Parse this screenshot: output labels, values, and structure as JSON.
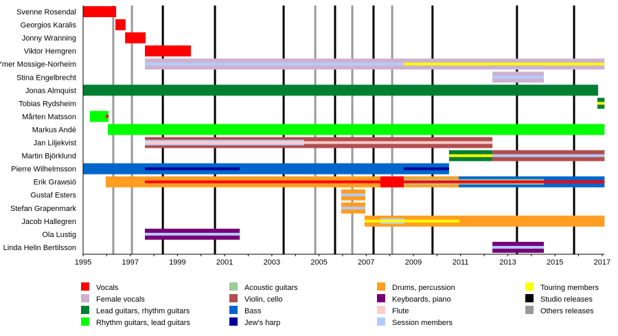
{
  "chart_data": {
    "type": "timeline",
    "title": "",
    "xlim": [
      1995,
      2017.1
    ],
    "x_ticks_labeled": [
      1995,
      1997,
      1999,
      2001,
      2003,
      2005,
      2007,
      2009,
      2011,
      2013,
      2015,
      2017
    ],
    "x_tick_labels": [
      "1995",
      "1997",
      "1999",
      "2001",
      "2003",
      "2005",
      "2007",
      "2009",
      "2011",
      "2013",
      "2015",
      "2017"
    ],
    "roles": {
      "vocals": {
        "label": "Vocals",
        "color": "#ff0000"
      },
      "female_vocals": {
        "label": "Female vocals",
        "color": "#cdb2cf"
      },
      "lead_guitars": {
        "label": "Lead guitars, rhythm guitars",
        "color": "#007f33"
      },
      "rhythm_guitars": {
        "label": "Rhythm guitars, lead guitars",
        "color": "#00ff00"
      },
      "acoustic_guitars": {
        "label": "Acoustic guitars",
        "color": "#9ccc9a"
      },
      "violin": {
        "label": "Violin, cello",
        "color": "#b24e4e"
      },
      "bass": {
        "label": "Bass",
        "color": "#0066cc"
      },
      "jews_harp": {
        "label": "Jew's harp",
        "color": "#000099"
      },
      "drums": {
        "label": "Drums, percussion",
        "color": "#ff9e22"
      },
      "keyboards": {
        "label": "Keyboards, piano",
        "color": "#770077"
      },
      "flute": {
        "label": "Flute",
        "color": "#ffcccc"
      },
      "session": {
        "label": "Session members",
        "color": "#b3ccff"
      },
      "touring": {
        "label": "Touring members",
        "color": "#ffff00"
      },
      "studio": {
        "label": "Studio releases",
        "color": "#000000"
      },
      "others": {
        "label": "Others releases",
        "color": "#999999"
      }
    },
    "legend_columns": [
      [
        "vocals",
        "female_vocals",
        "lead_guitars",
        "rhythm_guitars"
      ],
      [
        "acoustic_guitars",
        "violin",
        "bass",
        "jews_harp"
      ],
      [
        "drums",
        "keyboards",
        "flute",
        "session"
      ],
      [
        "touring",
        "studio",
        "others"
      ]
    ],
    "studio_releases": [
      1998.38,
      2000.59,
      2003.5,
      2005.68,
      2007.31,
      2009.81,
      2013.39,
      2015.81
    ],
    "other_releases": [
      1996.28,
      1997.07,
      2004.84,
      2006.41,
      2008.1
    ],
    "members": [
      {
        "name": "Svenne Rosendal",
        "bars": [
          {
            "role": "vocals",
            "from": 1995.0,
            "to": 1996.4,
            "layer": "full"
          }
        ]
      },
      {
        "name": "Georgios Karalis",
        "bars": [
          {
            "role": "vocals",
            "from": 1996.37,
            "to": 1996.8,
            "layer": "full"
          }
        ]
      },
      {
        "name": "Jonny Wranning",
        "bars": [
          {
            "role": "vocals",
            "from": 1996.78,
            "to": 1997.65,
            "layer": "full"
          }
        ]
      },
      {
        "name": "Viktor Hemgren",
        "bars": [
          {
            "role": "vocals",
            "from": 1997.62,
            "to": 1999.57,
            "layer": "full"
          }
        ]
      },
      {
        "name": "Ymer Mossige-Norheim",
        "bars": [
          {
            "role": "female_vocals",
            "from": 1997.62,
            "to": 2017.1,
            "layer": "full"
          },
          {
            "role": "session",
            "from": 1997.62,
            "to": 2008.59,
            "layer": "stripe"
          },
          {
            "role": "touring",
            "from": 2008.59,
            "to": 2017.1,
            "layer": "stripe"
          }
        ]
      },
      {
        "name": "Stina Engelbrecht",
        "bars": [
          {
            "role": "female_vocals",
            "from": 2012.35,
            "to": 2014.53,
            "layer": "full"
          },
          {
            "role": "session",
            "from": 2012.35,
            "to": 2014.53,
            "layer": "stripe"
          }
        ]
      },
      {
        "name": "Jonas Almquist",
        "bars": [
          {
            "role": "lead_guitars",
            "from": 1995.0,
            "to": 2016.83,
            "layer": "full"
          }
        ]
      },
      {
        "name": "Tobias Rydsheim",
        "bars": [
          {
            "role": "lead_guitars",
            "from": 2016.8,
            "to": 2017.1,
            "layer": "full"
          },
          {
            "role": "touring",
            "from": 2016.8,
            "to": 2017.1,
            "layer": "stripe"
          }
        ]
      },
      {
        "name": "Mårten Matsson",
        "bars": [
          {
            "role": "rhythm_guitars",
            "from": 1995.29,
            "to": 1996.08,
            "layer": "full"
          },
          {
            "role": "vocals",
            "from": 1995.96,
            "to": 1996.08,
            "layer": "stripe"
          }
        ]
      },
      {
        "name": "Markus Andé",
        "bars": [
          {
            "role": "rhythm_guitars",
            "from": 1996.05,
            "to": 2017.1,
            "layer": "full"
          }
        ]
      },
      {
        "name": "Jan Liljekvist",
        "bars": [
          {
            "role": "violin",
            "from": 1997.62,
            "to": 2012.35,
            "layer": "full"
          },
          {
            "role": "session",
            "from": 1997.62,
            "to": 2004.37,
            "layer": "wide"
          },
          {
            "role": "flute",
            "from": 1997.62,
            "to": 2012.35,
            "layer": "stripe"
          }
        ]
      },
      {
        "name": "Martin Björklund",
        "bars": [
          {
            "role": "lead_guitars",
            "from": 2010.51,
            "to": 2012.35,
            "layer": "full"
          },
          {
            "role": "touring",
            "from": 2010.51,
            "to": 2012.35,
            "layer": "stripe"
          },
          {
            "role": "violin",
            "from": 2012.35,
            "to": 2017.1,
            "layer": "full"
          },
          {
            "role": "session",
            "from": 2012.35,
            "to": 2017.1,
            "layer": "stripe"
          }
        ]
      },
      {
        "name": "Pierre Wilhelmsson",
        "bars": [
          {
            "role": "bass",
            "from": 1995.0,
            "to": 2010.51,
            "layer": "full"
          },
          {
            "role": "jews_harp",
            "from": 1997.62,
            "to": 2001.64,
            "layer": "stripe"
          },
          {
            "role": "jews_harp",
            "from": 2008.59,
            "to": 2010.51,
            "layer": "stripe"
          }
        ]
      },
      {
        "name": "Erik Grawsiö",
        "bars": [
          {
            "role": "bass",
            "from": 2010.51,
            "to": 2017.1,
            "layer": "full"
          },
          {
            "role": "drums",
            "from": 1995.96,
            "to": 2010.92,
            "layer": "full"
          },
          {
            "role": "flute",
            "from": 2009.26,
            "to": 2010.51,
            "layer": "wide"
          },
          {
            "role": "acoustic_guitars",
            "from": 2008.59,
            "to": 2014.53,
            "layer": "edges"
          },
          {
            "role": "vocals",
            "from": 1997.62,
            "to": 2017.1,
            "layer": "stripe"
          },
          {
            "role": "vocals",
            "from": 2007.6,
            "to": 2008.59,
            "layer": "full"
          }
        ]
      },
      {
        "name": "Gustaf Esters",
        "bars": [
          {
            "role": "drums",
            "from": 2005.94,
            "to": 2006.96,
            "layer": "full"
          },
          {
            "role": "session",
            "from": 2005.94,
            "to": 2006.96,
            "layer": "stripe"
          }
        ]
      },
      {
        "name": "Stefan Grapenmark",
        "bars": [
          {
            "role": "drums",
            "from": 2005.94,
            "to": 2006.96,
            "layer": "full"
          },
          {
            "role": "session",
            "from": 2005.94,
            "to": 2006.96,
            "layer": "stripe"
          }
        ]
      },
      {
        "name": "Jacob Hallegren",
        "bars": [
          {
            "role": "drums",
            "from": 2006.93,
            "to": 2017.1,
            "layer": "full"
          },
          {
            "role": "session",
            "from": 2007.6,
            "to": 2008.62,
            "layer": "wide"
          },
          {
            "role": "touring",
            "from": 2006.93,
            "to": 2010.95,
            "layer": "stripe"
          }
        ]
      },
      {
        "name": "Ola Lustig",
        "bars": [
          {
            "role": "keyboards",
            "from": 1997.62,
            "to": 2001.64,
            "layer": "full"
          },
          {
            "role": "session",
            "from": 1997.62,
            "to": 2001.64,
            "layer": "stripe"
          }
        ]
      },
      {
        "name": "Linda Helin Bertilsson",
        "bars": [
          {
            "role": "keyboards",
            "from": 2012.35,
            "to": 2014.53,
            "layer": "full"
          },
          {
            "role": "session",
            "from": 2012.35,
            "to": 2014.53,
            "layer": "stripe"
          }
        ]
      }
    ]
  }
}
